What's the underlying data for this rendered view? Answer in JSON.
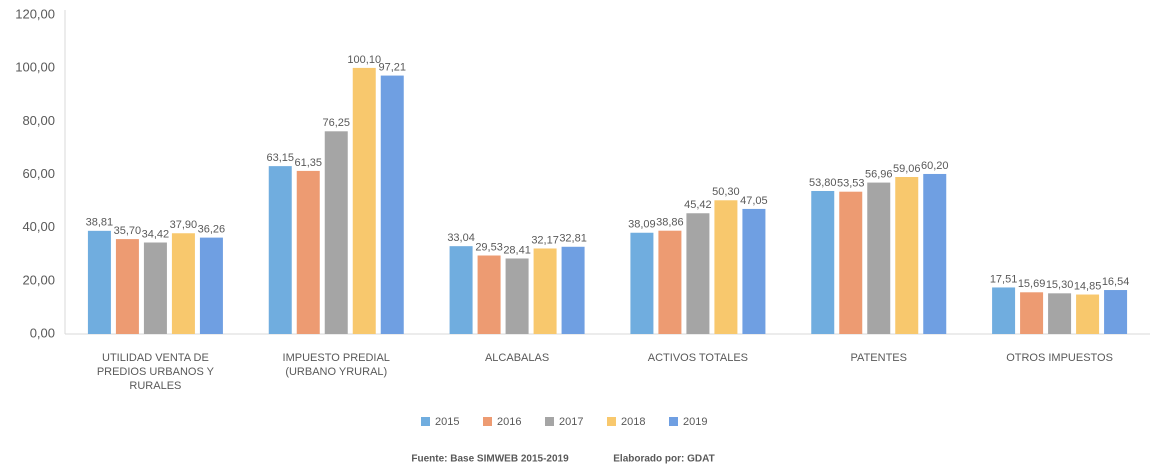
{
  "chart_data": {
    "type": "bar",
    "categories": [
      "UTILIDAD VENTA DE PREDIOS URBANOS Y RURALES",
      "IMPUESTO PREDIAL (URBANO YRURAL)",
      "ALCABALAS",
      "ACTIVOS TOTALES",
      "PATENTES",
      "OTROS IMPUESTOS"
    ],
    "series": [
      {
        "name": "2015",
        "color": "#70ADDF",
        "values": [
          38.81,
          63.15,
          33.04,
          38.09,
          53.8,
          17.51
        ],
        "value_labels": [
          "38,81",
          "63,15",
          "33,04",
          "38,09",
          "53,80",
          "17,51"
        ]
      },
      {
        "name": "2016",
        "color": "#ED9B72",
        "values": [
          35.7,
          61.35,
          29.53,
          38.86,
          53.53,
          15.69
        ],
        "value_labels": [
          "35,70",
          "61,35",
          "29,53",
          "38,86",
          "53,53",
          "15,69"
        ]
      },
      {
        "name": "2017",
        "color": "#A5A5A5",
        "values": [
          34.42,
          76.25,
          28.41,
          45.42,
          56.96,
          15.3
        ],
        "value_labels": [
          "34,42",
          "76,25",
          "28,41",
          "45,42",
          "56,96",
          "15,30"
        ]
      },
      {
        "name": "2018",
        "color": "#F8C86D",
        "values": [
          37.9,
          100.1,
          32.17,
          50.3,
          59.06,
          14.85
        ],
        "value_labels": [
          "37,90",
          "100,10",
          "32,17",
          "50,30",
          "59,06",
          "14,85"
        ]
      },
      {
        "name": "2019",
        "color": "#6F9FE2",
        "values": [
          36.26,
          97.21,
          32.81,
          47.05,
          60.2,
          16.54
        ],
        "value_labels": [
          "36,26",
          "97,21",
          "32,81",
          "47,05",
          "60,20",
          "16,54"
        ]
      }
    ],
    "ylim": [
      0,
      120
    ],
    "yticks": [
      {
        "value": 0,
        "label": "0,00"
      },
      {
        "value": 20,
        "label": "20,00"
      },
      {
        "value": 40,
        "label": "40,00"
      },
      {
        "value": 60,
        "label": "60,00"
      },
      {
        "value": 80,
        "label": "80,00"
      },
      {
        "value": 100,
        "label": "100,00"
      },
      {
        "value": 120,
        "label": "120,00"
      }
    ],
    "grid": false,
    "legend": "bottom",
    "source": "Fuente: Base SIMWEB 2015-2019",
    "credit": "Elaborado por: GDAT"
  }
}
